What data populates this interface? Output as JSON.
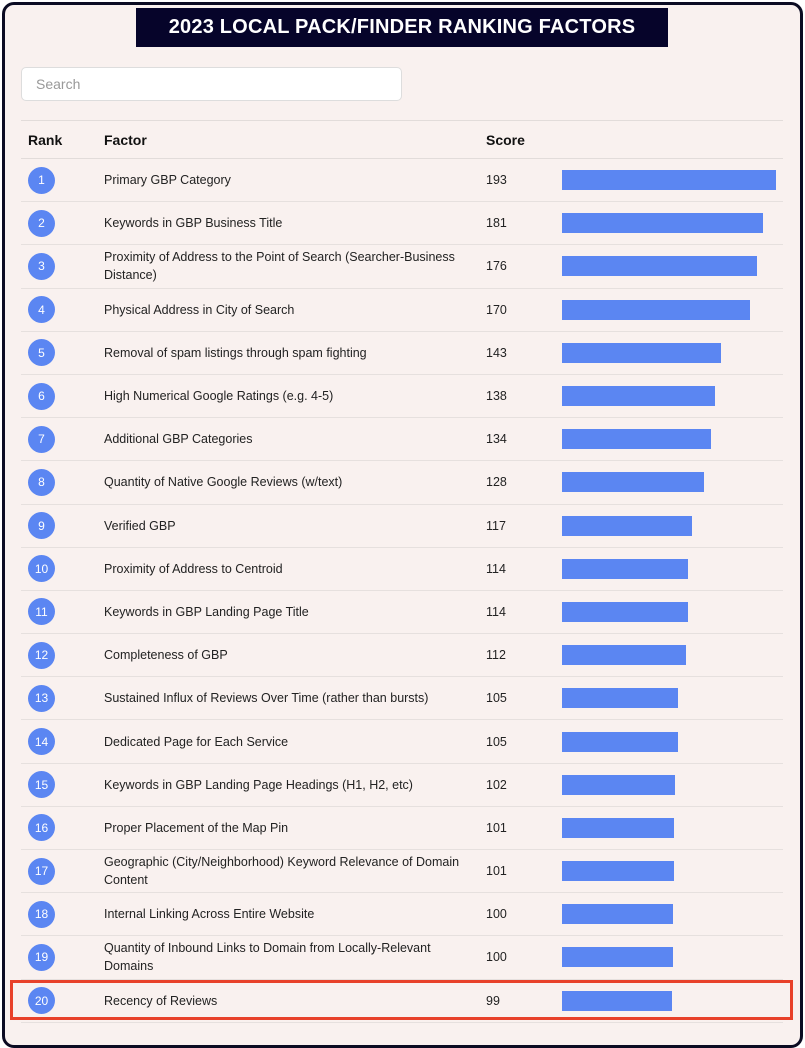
{
  "title": "2023 LOCAL PACK/FINDER RANKING FACTORS",
  "search": {
    "placeholder": "Search",
    "value": ""
  },
  "columns": {
    "rank": "Rank",
    "factor": "Factor",
    "score": "Score"
  },
  "colors": {
    "bar": "#5b86f2",
    "title_bg": "#06042a",
    "highlight": "#e8412a"
  },
  "highlighted_rank": 20,
  "rows": [
    {
      "rank": "1",
      "factor": "Primary GBP Category",
      "score": 193
    },
    {
      "rank": "2",
      "factor": "Keywords in GBP Business Title",
      "score": 181
    },
    {
      "rank": "3",
      "factor": "Proximity of Address to the Point of Search (Searcher-Business Distance)",
      "score": 176
    },
    {
      "rank": "4",
      "factor": "Physical Address in City of Search",
      "score": 170
    },
    {
      "rank": "5",
      "factor": "Removal of spam listings through spam fighting",
      "score": 143
    },
    {
      "rank": "6",
      "factor": "High Numerical Google Ratings (e.g. 4-5)",
      "score": 138
    },
    {
      "rank": "7",
      "factor": "Additional GBP Categories",
      "score": 134
    },
    {
      "rank": "8",
      "factor": "Quantity of Native Google Reviews (w/text)",
      "score": 128
    },
    {
      "rank": "9",
      "factor": "Verified GBP",
      "score": 117
    },
    {
      "rank": "10",
      "factor": "Proximity of Address to Centroid",
      "score": 114
    },
    {
      "rank": "11",
      "factor": "Keywords in GBP Landing Page Title",
      "score": 114
    },
    {
      "rank": "12",
      "factor": "Completeness of GBP",
      "score": 112
    },
    {
      "rank": "13",
      "factor": "Sustained Influx of Reviews Over Time (rather than bursts)",
      "score": 105
    },
    {
      "rank": "14",
      "factor": "Dedicated Page for Each Service",
      "score": 105
    },
    {
      "rank": "15",
      "factor": "Keywords in GBP Landing Page Headings (H1, H2, etc)",
      "score": 102
    },
    {
      "rank": "16",
      "factor": "Proper Placement of the Map Pin",
      "score": 101
    },
    {
      "rank": "17",
      "factor": "Geographic (City/Neighborhood) Keyword Relevance of Domain Content",
      "score": 101
    },
    {
      "rank": "18",
      "factor": "Internal Linking Across Entire Website",
      "score": 100
    },
    {
      "rank": "19",
      "factor": "Quantity of Inbound Links to Domain from Locally-Relevant Domains",
      "score": 100
    },
    {
      "rank": "20",
      "factor": "Recency of Reviews",
      "score": 99
    }
  ]
}
